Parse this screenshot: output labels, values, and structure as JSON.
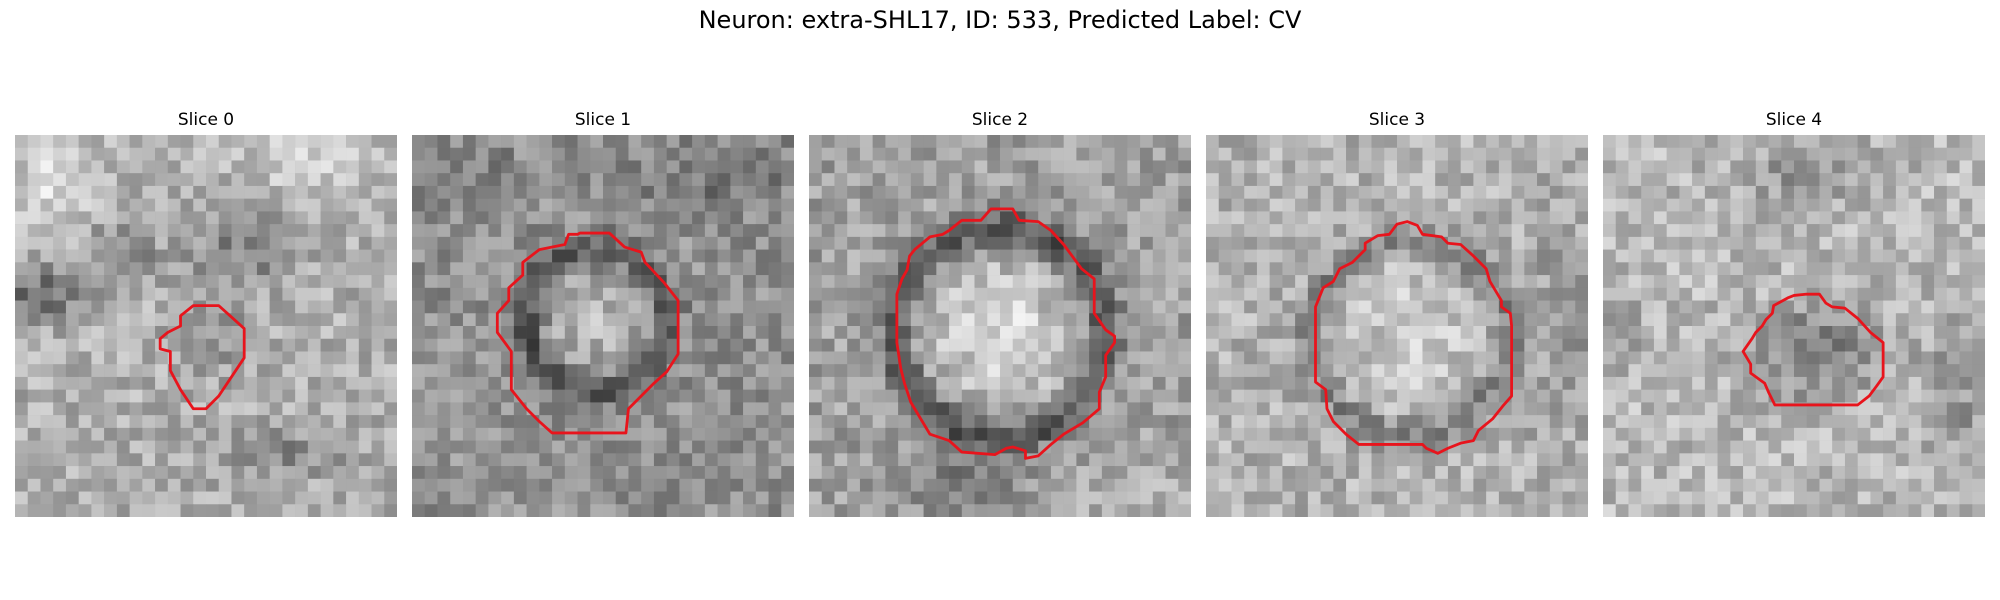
{
  "figure": {
    "title": "Neuron: extra-SHL17, ID: 533, Predicted Label: CV"
  },
  "panels": [
    {
      "title": "Slice 0",
      "contour_color": "#e8141c"
    },
    {
      "title": "Slice 1",
      "contour_color": "#e8141c"
    },
    {
      "title": "Slice 2",
      "contour_color": "#e8141c"
    },
    {
      "title": "Slice 3",
      "contour_color": "#e8141c"
    },
    {
      "title": "Slice 4",
      "contour_color": "#e8141c"
    }
  ]
}
